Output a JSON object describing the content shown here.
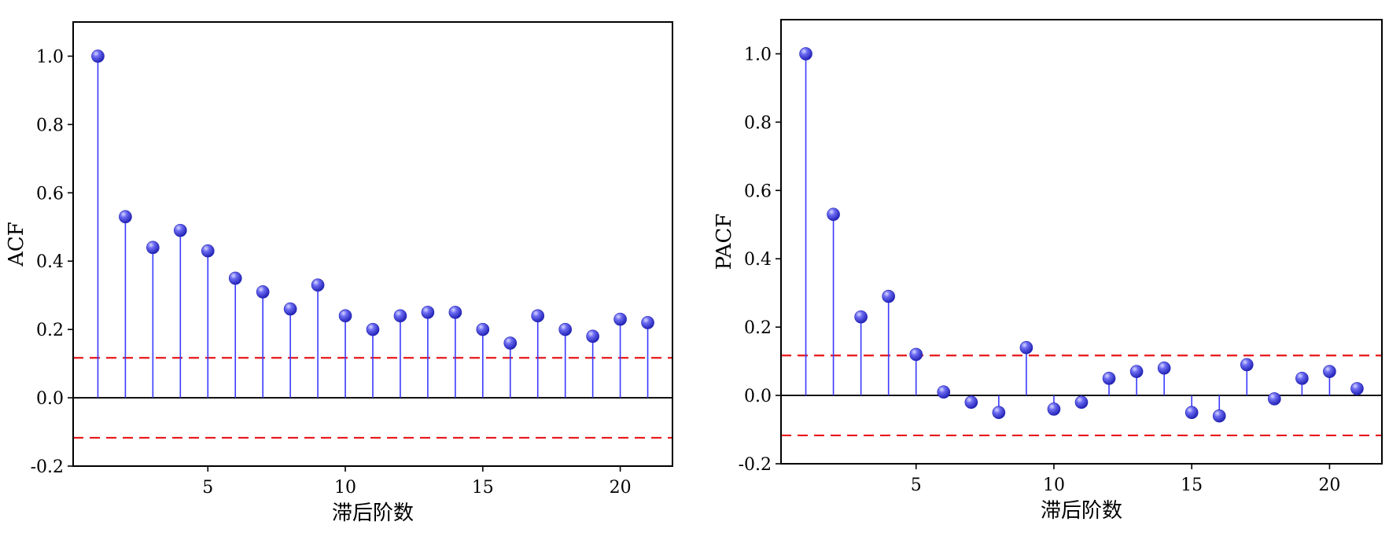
{
  "chart_data": [
    {
      "type": "stem",
      "xlabel": "滞后阶数",
      "ylabel": "ACF",
      "xlim": [
        0.1,
        21.9
      ],
      "ylim": [
        -0.2,
        1.1
      ],
      "xticks": [
        5,
        10,
        15,
        20
      ],
      "yticks": [
        -0.2,
        0.0,
        0.2,
        0.4,
        0.6,
        0.8,
        1.0
      ],
      "ytick_labels": [
        "-0.2",
        "0.0",
        "0.2",
        "0.4",
        "0.6",
        "0.8",
        "1.0"
      ],
      "lags": [
        1,
        2,
        3,
        4,
        5,
        6,
        7,
        8,
        9,
        10,
        11,
        12,
        13,
        14,
        15,
        16,
        17,
        18,
        19,
        20,
        21
      ],
      "values": [
        1.0,
        0.53,
        0.44,
        0.49,
        0.43,
        0.35,
        0.31,
        0.26,
        0.33,
        0.24,
        0.2,
        0.24,
        0.25,
        0.25,
        0.2,
        0.16,
        0.24,
        0.2,
        0.18,
        0.23,
        0.22
      ],
      "confidence_bounds": [
        0.117,
        -0.117
      ],
      "colors": {
        "stem": "#3a3aff",
        "marker": "#4444ee",
        "bound": "#e8171b",
        "zero": "#000000"
      }
    },
    {
      "type": "stem",
      "xlabel": "滞后阶数",
      "ylabel": "PACF",
      "xlim": [
        0.1,
        21.9
      ],
      "ylim": [
        -0.2,
        1.1
      ],
      "xticks": [
        5,
        10,
        15,
        20
      ],
      "yticks": [
        -0.2,
        0.0,
        0.2,
        0.4,
        0.6,
        0.8,
        1.0
      ],
      "ytick_labels": [
        "-0.2",
        "0.0",
        "0.2",
        "0.4",
        "0.6",
        "0.8",
        "1.0"
      ],
      "lags": [
        1,
        2,
        3,
        4,
        5,
        6,
        7,
        8,
        9,
        10,
        11,
        12,
        13,
        14,
        15,
        16,
        17,
        18,
        19,
        20,
        21
      ],
      "values": [
        1.0,
        0.53,
        0.23,
        0.29,
        0.12,
        0.01,
        -0.02,
        -0.05,
        0.14,
        -0.04,
        -0.02,
        0.05,
        0.07,
        0.08,
        -0.05,
        -0.06,
        0.09,
        -0.01,
        0.05,
        0.07,
        0.02
      ],
      "confidence_bounds": [
        0.117,
        -0.117
      ],
      "colors": {
        "stem": "#3a3aff",
        "marker": "#4444ee",
        "bound": "#e8171b",
        "zero": "#000000"
      }
    }
  ]
}
